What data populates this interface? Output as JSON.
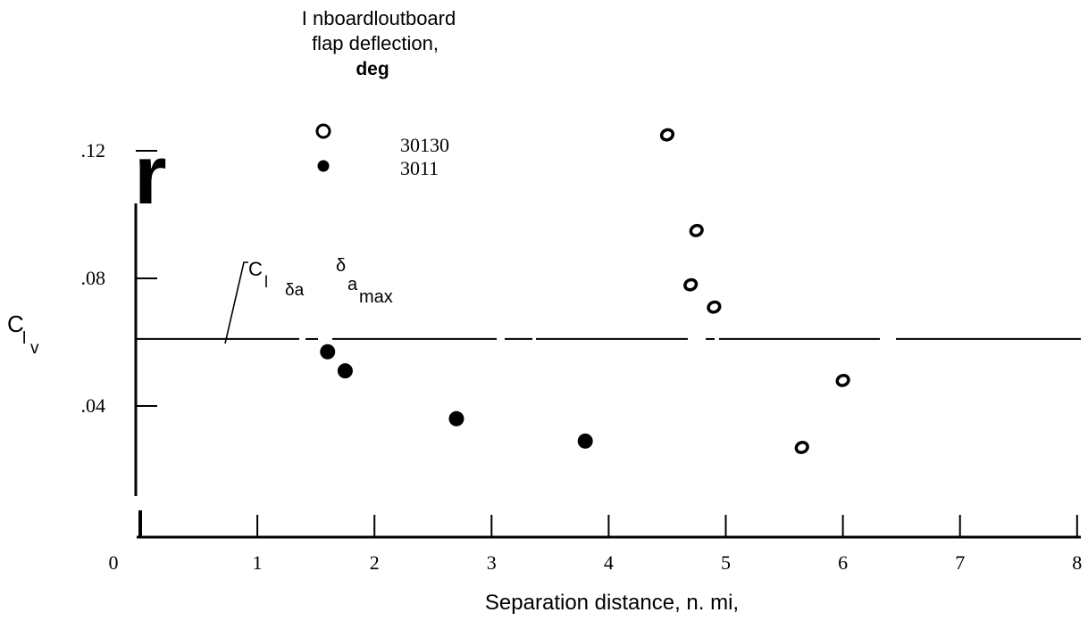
{
  "chart_data": {
    "type": "scatter",
    "title": "",
    "xlabel": "Separation distance,  n. mi,",
    "ylabel": "C",
    "ylabel_sub": "l",
    "ylabel_subsub": "v",
    "x_tick_labels": [
      "0",
      "1",
      "2",
      "3",
      "4",
      "5",
      "6",
      "7",
      "8"
    ],
    "y_tick_labels": [
      ".04",
      ".08",
      ".12"
    ],
    "xlim": [
      0,
      8
    ],
    "ylim": [
      0,
      0.12
    ],
    "grid": false,
    "legend": {
      "title_lines": [
        "I nboardloutboard",
        "flap deflection,",
        "deg"
      ],
      "placement": "top-center",
      "entries": [
        "30130",
        "3011"
      ]
    },
    "series": [
      {
        "name": "30130",
        "marker": "open-circle",
        "points": [
          {
            "x": 4.5,
            "y": 0.125
          },
          {
            "x": 4.75,
            "y": 0.095
          },
          {
            "x": 4.7,
            "y": 0.078
          },
          {
            "x": 4.9,
            "y": 0.071
          },
          {
            "x": 6.0,
            "y": 0.048
          },
          {
            "x": 5.65,
            "y": 0.027
          }
        ]
      },
      {
        "name": "3011",
        "marker": "filled-circle",
        "points": [
          {
            "x": 1.6,
            "y": 0.057
          },
          {
            "x": 1.75,
            "y": 0.051
          },
          {
            "x": 2.7,
            "y": 0.036
          },
          {
            "x": 3.8,
            "y": 0.029
          }
        ]
      }
    ],
    "reference_line": {
      "y": 0.061,
      "label_main": "C",
      "label_sub": "l",
      "label_subsub": "δa",
      "label_super": "δ",
      "label_super_sub": "a",
      "label_max": "max"
    },
    "stray_mark": "r"
  }
}
